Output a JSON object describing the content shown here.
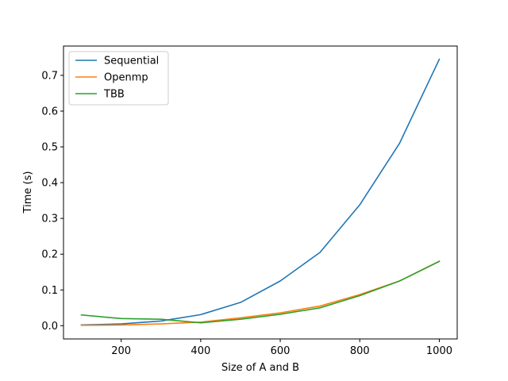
{
  "chart_data": {
    "type": "line",
    "title": "",
    "xlabel": "Size of A and B",
    "ylabel": "Time (s)",
    "xlim": [
      55,
      1045
    ],
    "ylim": [
      -0.037,
      0.782
    ],
    "xticks": [
      200,
      400,
      600,
      800,
      1000
    ],
    "yticks": [
      0.0,
      0.1,
      0.2,
      0.3,
      0.4,
      0.5,
      0.6,
      0.7
    ],
    "x": [
      100,
      200,
      300,
      400,
      500,
      600,
      700,
      800,
      900,
      1000
    ],
    "grid": false,
    "legend_position": "upper-left",
    "series": [
      {
        "name": "Sequential",
        "color": "#1f77b4",
        "values": [
          0.002,
          0.005,
          0.013,
          0.031,
          0.065,
          0.125,
          0.205,
          0.338,
          0.51,
          0.745
        ]
      },
      {
        "name": "Openmp",
        "color": "#ff7f0e",
        "values": [
          0.001,
          0.002,
          0.005,
          0.01,
          0.022,
          0.036,
          0.055,
          0.087,
          0.125,
          0.18
        ]
      },
      {
        "name": "TBB",
        "color": "#2ca02c",
        "values": [
          0.03,
          0.02,
          0.018,
          0.008,
          0.018,
          0.032,
          0.05,
          0.084,
          0.125,
          0.18
        ]
      }
    ]
  }
}
